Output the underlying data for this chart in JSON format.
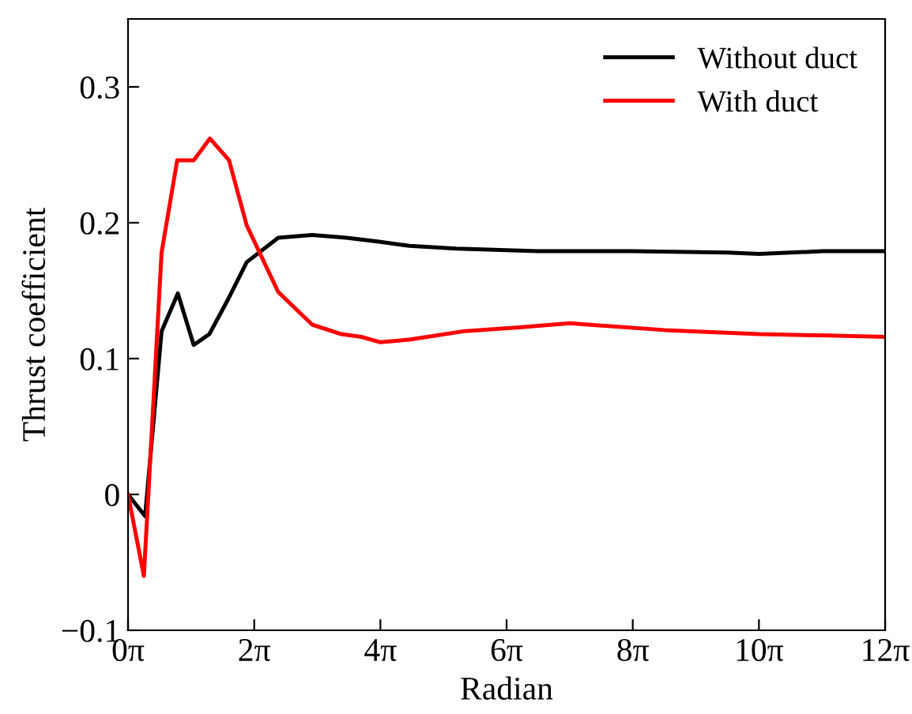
{
  "chart_data": {
    "type": "line",
    "xlabel": "Radian",
    "ylabel": "Thrust coefficient",
    "xlim": [
      0,
      37.6991
    ],
    "ylim": [
      -0.1,
      0.35
    ],
    "xticks": [
      {
        "value": 0,
        "label": "0π"
      },
      {
        "value": 6.2832,
        "label": "2π"
      },
      {
        "value": 12.5664,
        "label": "4π"
      },
      {
        "value": 18.8496,
        "label": "6π"
      },
      {
        "value": 25.1327,
        "label": "8π"
      },
      {
        "value": 31.4159,
        "label": "10π"
      },
      {
        "value": 37.6991,
        "label": "12π"
      }
    ],
    "yticks": [
      {
        "value": -0.1,
        "label": "−0.1"
      },
      {
        "value": 0,
        "label": "0"
      },
      {
        "value": 0.1,
        "label": "0.1"
      },
      {
        "value": 0.2,
        "label": "0.2"
      },
      {
        "value": 0.3,
        "label": "0.3"
      }
    ],
    "grid": false,
    "legend": "top right",
    "line_style": "solid",
    "marker": "none",
    "series": [
      {
        "name": "Without duct",
        "color": "#000000",
        "x": [
          0,
          0.85,
          1.67,
          2.48,
          3.27,
          4.05,
          4.96,
          5.91,
          7.48,
          9.17,
          10.87,
          12.5,
          14.01,
          16.34,
          20.42,
          25.13,
          29.85,
          31.42,
          32.99,
          34.56,
          37.699
        ],
        "values": [
          0,
          -0.016,
          0.12,
          0.148,
          0.11,
          0.118,
          0.143,
          0.171,
          0.189,
          0.191,
          0.189,
          0.186,
          0.183,
          0.181,
          0.179,
          0.179,
          0.178,
          0.177,
          0.178,
          0.179,
          0.179
        ]
      },
      {
        "name": "With duct",
        "color": "#ff0000",
        "x": [
          0,
          0.79,
          1.67,
          2.45,
          3.27,
          4.08,
          5.03,
          5.91,
          7.48,
          9.17,
          10.62,
          11.62,
          12.57,
          14.01,
          16.65,
          19.48,
          21.99,
          26.7,
          31.42,
          34.87,
          37.699
        ],
        "values": [
          0,
          -0.06,
          0.178,
          0.246,
          0.246,
          0.262,
          0.246,
          0.198,
          0.149,
          0.125,
          0.118,
          0.116,
          0.112,
          0.114,
          0.12,
          0.123,
          0.126,
          0.121,
          0.118,
          0.117,
          0.116
        ]
      }
    ]
  }
}
